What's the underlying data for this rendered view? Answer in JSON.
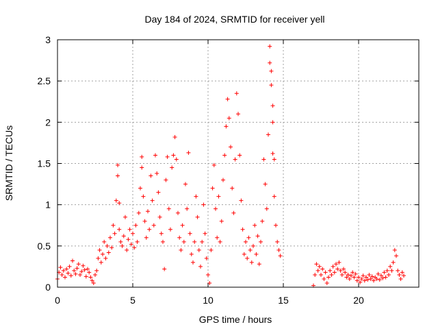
{
  "chart_data": {
    "type": "scatter",
    "title": "Day 184 of 2024, SRMTID for receiver yell",
    "xlabel": "GPS time / hours",
    "ylabel": "SRMTID / TECUs",
    "xlim": [
      0,
      24
    ],
    "ylim": [
      0,
      3
    ],
    "xticks": [
      0,
      5,
      10,
      15,
      20
    ],
    "xtick_labels": [
      "0",
      "5",
      "10",
      "15",
      "20"
    ],
    "yticks": [
      0,
      0.5,
      1,
      1.5,
      2,
      2.5,
      3
    ],
    "ytick_labels": [
      "0",
      "0.5",
      "1",
      "1.5",
      "2",
      "2.5",
      "3"
    ],
    "grid": true,
    "marker": "+",
    "color": "#ff0000",
    "series": [
      {
        "name": "SRMTID",
        "points": [
          [
            0.0,
            0.1
          ],
          [
            0.1,
            0.18
          ],
          [
            0.2,
            0.24
          ],
          [
            0.3,
            0.15
          ],
          [
            0.4,
            0.2
          ],
          [
            0.5,
            0.12
          ],
          [
            0.6,
            0.22
          ],
          [
            0.7,
            0.17
          ],
          [
            0.8,
            0.25
          ],
          [
            0.9,
            0.14
          ],
          [
            1.0,
            0.32
          ],
          [
            1.1,
            0.2
          ],
          [
            1.2,
            0.16
          ],
          [
            1.3,
            0.23
          ],
          [
            1.4,
            0.28
          ],
          [
            1.5,
            0.15
          ],
          [
            1.6,
            0.19
          ],
          [
            1.7,
            0.26
          ],
          [
            1.8,
            0.21
          ],
          [
            1.9,
            0.13
          ],
          [
            2.0,
            0.22
          ],
          [
            2.1,
            0.18
          ],
          [
            2.2,
            0.12
          ],
          [
            2.3,
            0.08
          ],
          [
            2.4,
            0.05
          ],
          [
            2.5,
            0.15
          ],
          [
            2.6,
            0.2
          ],
          [
            2.7,
            0.35
          ],
          [
            2.8,
            0.45
          ],
          [
            2.9,
            0.3
          ],
          [
            3.0,
            0.4
          ],
          [
            3.1,
            0.55
          ],
          [
            3.2,
            0.35
          ],
          [
            3.3,
            0.5
          ],
          [
            3.4,
            0.42
          ],
          [
            3.5,
            0.6
          ],
          [
            3.6,
            0.48
          ],
          [
            3.7,
            0.75
          ],
          [
            3.8,
            0.65
          ],
          [
            3.9,
            1.05
          ],
          [
            4.0,
            1.48
          ],
          [
            4.0,
            1.35
          ],
          [
            4.1,
            1.02
          ],
          [
            4.1,
            0.7
          ],
          [
            4.2,
            0.55
          ],
          [
            4.3,
            0.5
          ],
          [
            4.4,
            0.62
          ],
          [
            4.5,
            0.85
          ],
          [
            4.6,
            0.45
          ],
          [
            4.7,
            0.58
          ],
          [
            4.8,
            0.7
          ],
          [
            4.9,
            0.52
          ],
          [
            5.0,
            0.65
          ],
          [
            5.1,
            0.48
          ],
          [
            5.2,
            0.75
          ],
          [
            5.3,
            0.55
          ],
          [
            5.4,
            0.9
          ],
          [
            5.5,
            1.2
          ],
          [
            5.6,
            1.58
          ],
          [
            5.6,
            1.45
          ],
          [
            5.7,
            1.1
          ],
          [
            5.8,
            0.8
          ],
          [
            5.9,
            0.6
          ],
          [
            6.0,
            0.92
          ],
          [
            6.1,
            0.7
          ],
          [
            6.2,
            1.35
          ],
          [
            6.3,
            1.05
          ],
          [
            6.4,
            0.75
          ],
          [
            6.5,
            1.6
          ],
          [
            6.6,
            1.38
          ],
          [
            6.7,
            1.15
          ],
          [
            6.8,
            0.85
          ],
          [
            6.9,
            0.65
          ],
          [
            7.0,
            0.55
          ],
          [
            7.1,
            0.22
          ],
          [
            7.2,
            1.3
          ],
          [
            7.3,
            1.58
          ],
          [
            7.4,
            0.95
          ],
          [
            7.5,
            0.7
          ],
          [
            7.6,
            1.45
          ],
          [
            7.7,
            1.6
          ],
          [
            7.8,
            1.82
          ],
          [
            7.9,
            1.55
          ],
          [
            8.0,
            0.9
          ],
          [
            8.1,
            0.6
          ],
          [
            8.2,
            0.45
          ],
          [
            8.3,
            0.75
          ],
          [
            8.4,
            0.55
          ],
          [
            8.5,
            1.25
          ],
          [
            8.6,
            0.95
          ],
          [
            8.7,
            1.63
          ],
          [
            8.8,
            0.65
          ],
          [
            8.9,
            0.4
          ],
          [
            9.0,
            0.3
          ],
          [
            9.1,
            0.55
          ],
          [
            9.2,
            1.1
          ],
          [
            9.3,
            0.85
          ],
          [
            9.4,
            0.45
          ],
          [
            9.5,
            0.25
          ],
          [
            9.6,
            0.55
          ],
          [
            9.7,
            1.0
          ],
          [
            9.8,
            0.65
          ],
          [
            9.9,
            0.35
          ],
          [
            10.0,
            0.15
          ],
          [
            10.1,
            0.05
          ],
          [
            10.2,
            0.45
          ],
          [
            10.3,
            1.2
          ],
          [
            10.4,
            1.48
          ],
          [
            10.5,
            0.95
          ],
          [
            10.6,
            0.6
          ],
          [
            10.7,
            1.1
          ],
          [
            10.8,
            0.55
          ],
          [
            10.9,
            0.8
          ],
          [
            11.0,
            1.3
          ],
          [
            11.1,
            1.6
          ],
          [
            11.2,
            1.95
          ],
          [
            11.3,
            2.28
          ],
          [
            11.4,
            2.05
          ],
          [
            11.5,
            1.7
          ],
          [
            11.6,
            1.2
          ],
          [
            11.7,
            0.9
          ],
          [
            11.8,
            1.55
          ],
          [
            11.9,
            2.35
          ],
          [
            12.0,
            2.1
          ],
          [
            12.1,
            1.6
          ],
          [
            12.2,
            1.05
          ],
          [
            12.3,
            0.7
          ],
          [
            12.4,
            0.4
          ],
          [
            12.5,
            0.55
          ],
          [
            12.6,
            0.35
          ],
          [
            12.7,
            0.6
          ],
          [
            12.8,
            0.45
          ],
          [
            12.9,
            0.3
          ],
          [
            13.0,
            0.5
          ],
          [
            13.1,
            0.75
          ],
          [
            13.2,
            0.4
          ],
          [
            13.3,
            0.62
          ],
          [
            13.4,
            0.28
          ],
          [
            13.5,
            0.55
          ],
          [
            13.6,
            0.8
          ],
          [
            13.7,
            1.55
          ],
          [
            13.8,
            1.25
          ],
          [
            13.9,
            0.95
          ],
          [
            14.0,
            1.85
          ],
          [
            14.1,
            2.92
          ],
          [
            14.1,
            2.72
          ],
          [
            14.2,
            2.62
          ],
          [
            14.2,
            2.45
          ],
          [
            14.3,
            2.2
          ],
          [
            14.3,
            2.0
          ],
          [
            14.3,
            1.62
          ],
          [
            14.4,
            1.55
          ],
          [
            14.4,
            1.1
          ],
          [
            14.5,
            0.75
          ],
          [
            14.6,
            0.55
          ],
          [
            14.7,
            0.45
          ],
          [
            14.8,
            0.38
          ],
          [
            17.0,
            0.02
          ],
          [
            17.1,
            0.15
          ],
          [
            17.2,
            0.28
          ],
          [
            17.3,
            0.2
          ],
          [
            17.4,
            0.25
          ],
          [
            17.5,
            0.15
          ],
          [
            17.6,
            0.22
          ],
          [
            17.7,
            0.1
          ],
          [
            17.8,
            0.18
          ],
          [
            17.9,
            0.05
          ],
          [
            18.0,
            0.12
          ],
          [
            18.1,
            0.2
          ],
          [
            18.2,
            0.15
          ],
          [
            18.3,
            0.25
          ],
          [
            18.4,
            0.18
          ],
          [
            18.5,
            0.28
          ],
          [
            18.6,
            0.22
          ],
          [
            18.7,
            0.3
          ],
          [
            18.8,
            0.2
          ],
          [
            18.9,
            0.15
          ],
          [
            19.0,
            0.22
          ],
          [
            19.1,
            0.18
          ],
          [
            19.2,
            0.12
          ],
          [
            19.3,
            0.15
          ],
          [
            19.4,
            0.1
          ],
          [
            19.5,
            0.14
          ],
          [
            19.6,
            0.18
          ],
          [
            19.7,
            0.12
          ],
          [
            19.8,
            0.16
          ],
          [
            19.9,
            0.08
          ],
          [
            20.0,
            0.12
          ],
          [
            20.1,
            0.06
          ],
          [
            20.2,
            0.1
          ],
          [
            20.3,
            0.14
          ],
          [
            20.4,
            0.08
          ],
          [
            20.5,
            0.12
          ],
          [
            20.6,
            0.09
          ],
          [
            20.7,
            0.15
          ],
          [
            20.8,
            0.1
          ],
          [
            20.9,
            0.13
          ],
          [
            21.0,
            0.08
          ],
          [
            21.1,
            0.12
          ],
          [
            21.2,
            0.1
          ],
          [
            21.3,
            0.16
          ],
          [
            21.4,
            0.09
          ],
          [
            21.5,
            0.14
          ],
          [
            21.6,
            0.11
          ],
          [
            21.7,
            0.18
          ],
          [
            21.8,
            0.12
          ],
          [
            21.9,
            0.2
          ],
          [
            22.0,
            0.15
          ],
          [
            22.1,
            0.25
          ],
          [
            22.2,
            0.2
          ],
          [
            22.3,
            0.3
          ],
          [
            22.4,
            0.45
          ],
          [
            22.5,
            0.38
          ],
          [
            22.6,
            0.2
          ],
          [
            22.7,
            0.15
          ],
          [
            22.8,
            0.1
          ],
          [
            22.9,
            0.18
          ],
          [
            23.0,
            0.14
          ]
        ]
      }
    ]
  }
}
